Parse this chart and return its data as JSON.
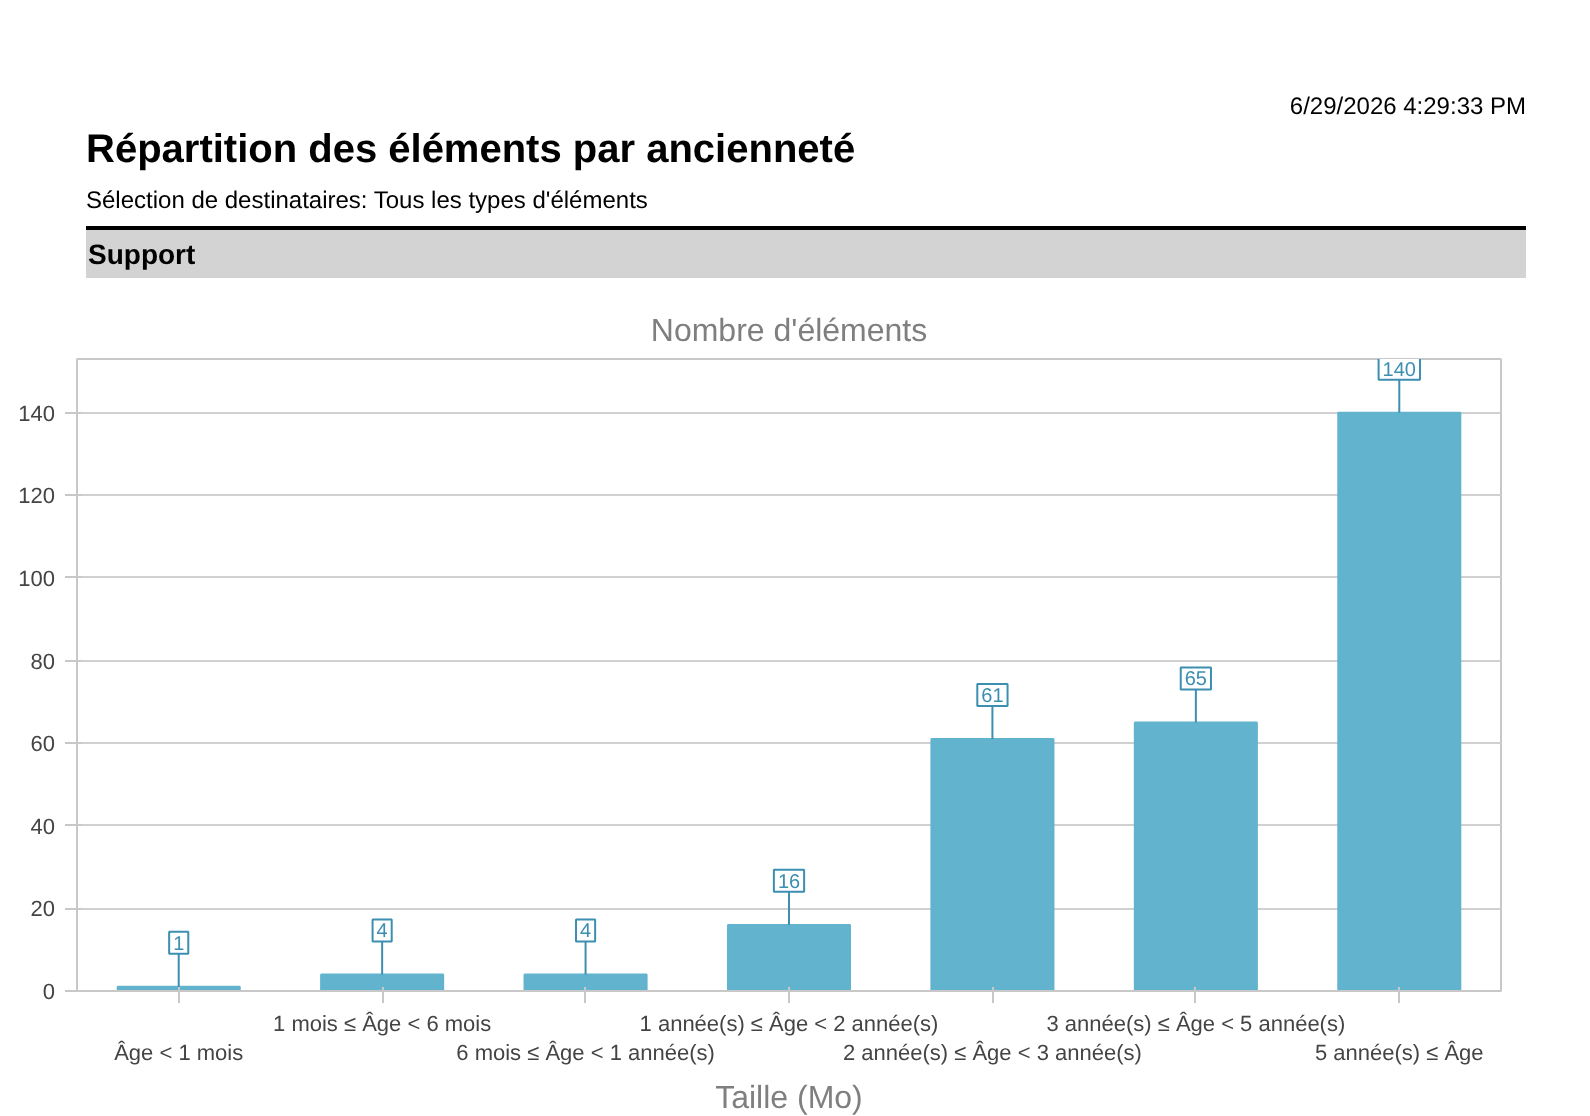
{
  "chart_data": {
    "type": "bar",
    "title": "Répartition des éléments par ancienneté",
    "subtitle": "Sélection de destinataires: Tous les types d'éléments",
    "annotations": [
      "6/29/2026 4:29:33 PM",
      "Support"
    ],
    "ylabel": "Nombre d'éléments",
    "xlabel": "Taille (Mo)",
    "categories": [
      "Âge < 1 mois",
      "1 mois ≤ Âge < 6 mois",
      "6 mois ≤ Âge < 1 année(s)",
      "1 année(s) ≤ Âge < 2 année(s)",
      "2 année(s) ≤ Âge < 3 année(s)",
      "3 année(s) ≤ Âge < 5 année(s)",
      "5 année(s) ≤ Âge"
    ],
    "values": [
      1,
      4,
      4,
      16,
      61,
      65,
      140
    ],
    "color": "#62b3cd",
    "ylim": [
      0,
      153
    ],
    "yticks": [
      0,
      20,
      40,
      60,
      80,
      100,
      120,
      140
    ],
    "grid": "y",
    "data_labels": true
  }
}
